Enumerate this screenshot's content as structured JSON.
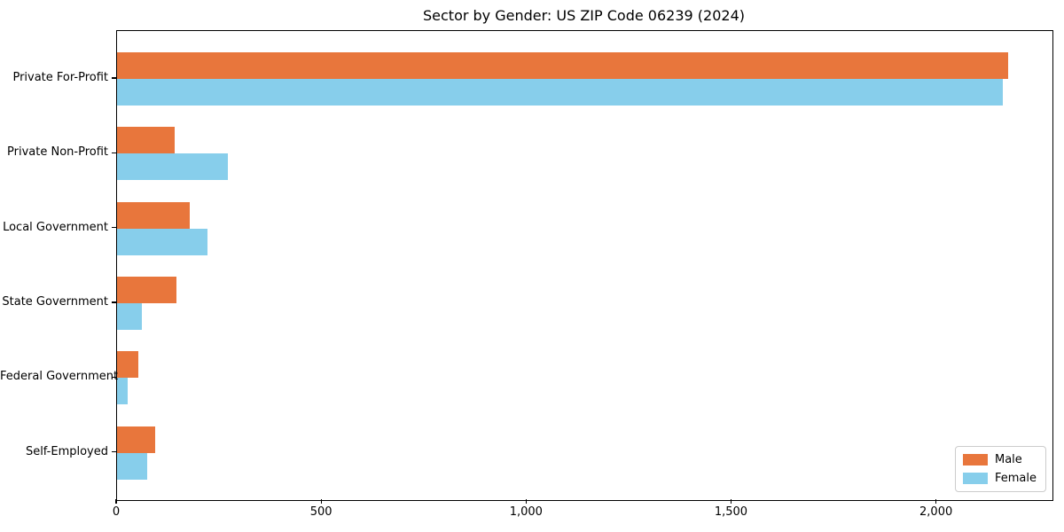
{
  "figure": {
    "title": "Sector by Gender: US ZIP Code 06239 (2024)"
  },
  "chart_data": {
    "type": "bar",
    "orientation": "horizontal",
    "title": "Sector by Gender: US ZIP Code 06239 (2024)",
    "xlabel": "",
    "ylabel": "",
    "categories": [
      "Private For-Profit",
      "Private Non-Profit",
      "Local Government",
      "State Government",
      "Federal Government",
      "Self-Employed"
    ],
    "series": [
      {
        "name": "Male",
        "color": "#E8763C",
        "values": [
          2173,
          141,
          177,
          145,
          52,
          93
        ]
      },
      {
        "name": "Female",
        "color": "#87CEEB",
        "values": [
          2160,
          270,
          221,
          61,
          26,
          74
        ]
      }
    ],
    "xlim": [
      0,
      2282
    ],
    "x_ticks": [
      {
        "value": 0,
        "label": "0"
      },
      {
        "value": 500,
        "label": "500"
      },
      {
        "value": 1000,
        "label": "1,000"
      },
      {
        "value": 1500,
        "label": "1,500"
      },
      {
        "value": 2000,
        "label": "2,000"
      }
    ],
    "grid": false,
    "legend": {
      "position": "lower right",
      "entries": [
        "Male",
        "Female"
      ]
    },
    "spine_color": "#000000",
    "background_color": "#ffffff"
  }
}
